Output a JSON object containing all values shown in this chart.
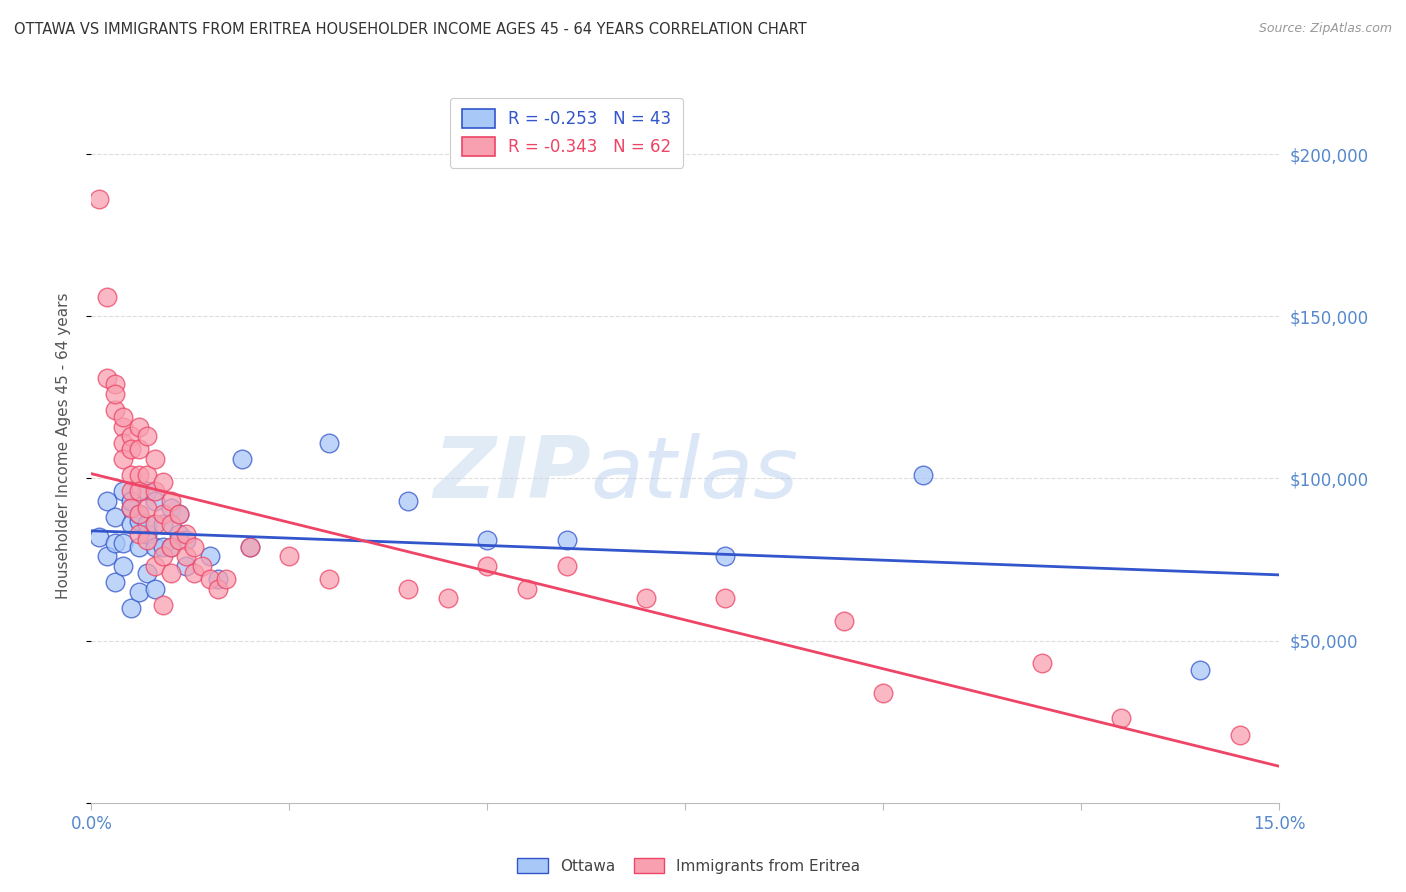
{
  "title": "OTTAWA VS IMMIGRANTS FROM ERITREA HOUSEHOLDER INCOME AGES 45 - 64 YEARS CORRELATION CHART",
  "source": "Source: ZipAtlas.com",
  "ylabel": "Householder Income Ages 45 - 64 years",
  "xmin": 0.0,
  "xmax": 0.15,
  "ymin": 0,
  "ymax": 220000,
  "yticks": [
    0,
    50000,
    100000,
    150000,
    200000
  ],
  "ytick_labels": [
    "",
    "$50,000",
    "$100,000",
    "$150,000",
    "$200,000"
  ],
  "ottawa_color": "#A8C8F8",
  "eritrea_color": "#F8A0B0",
  "ottawa_line_color": "#3355CC",
  "eritrea_line_color": "#EE4466",
  "R_ottawa": -0.253,
  "N_ottawa": 43,
  "R_eritrea": -0.343,
  "N_eritrea": 62,
  "watermark_zip": "ZIP",
  "watermark_atlas": "atlas",
  "background_color": "#FFFFFF",
  "grid_color": "#DDDDDD",
  "axis_label_color": "#5588CC",
  "title_color": "#333333",
  "xtick_positions": [
    0.0,
    0.025,
    0.05,
    0.075,
    0.1,
    0.125,
    0.15
  ],
  "ottawa_scatter": [
    [
      0.001,
      82000
    ],
    [
      0.002,
      76000
    ],
    [
      0.002,
      93000
    ],
    [
      0.003,
      68000
    ],
    [
      0.003,
      88000
    ],
    [
      0.003,
      80000
    ],
    [
      0.004,
      96000
    ],
    [
      0.004,
      80000
    ],
    [
      0.004,
      73000
    ],
    [
      0.005,
      91000
    ],
    [
      0.005,
      86000
    ],
    [
      0.005,
      60000
    ],
    [
      0.005,
      93000
    ],
    [
      0.006,
      87000
    ],
    [
      0.006,
      79000
    ],
    [
      0.006,
      65000
    ],
    [
      0.006,
      89000
    ],
    [
      0.007,
      83000
    ],
    [
      0.007,
      71000
    ],
    [
      0.007,
      96000
    ],
    [
      0.007,
      86000
    ],
    [
      0.008,
      79000
    ],
    [
      0.008,
      66000
    ],
    [
      0.008,
      93000
    ],
    [
      0.009,
      86000
    ],
    [
      0.009,
      79000
    ],
    [
      0.01,
      91000
    ],
    [
      0.01,
      79000
    ],
    [
      0.011,
      89000
    ],
    [
      0.011,
      83000
    ],
    [
      0.012,
      81000
    ],
    [
      0.012,
      73000
    ],
    [
      0.015,
      76000
    ],
    [
      0.016,
      69000
    ],
    [
      0.019,
      106000
    ],
    [
      0.02,
      79000
    ],
    [
      0.03,
      111000
    ],
    [
      0.04,
      93000
    ],
    [
      0.05,
      81000
    ],
    [
      0.06,
      81000
    ],
    [
      0.08,
      76000
    ],
    [
      0.105,
      101000
    ],
    [
      0.14,
      41000
    ]
  ],
  "eritrea_scatter": [
    [
      0.001,
      186000
    ],
    [
      0.002,
      156000
    ],
    [
      0.002,
      131000
    ],
    [
      0.003,
      129000
    ],
    [
      0.003,
      121000
    ],
    [
      0.003,
      126000
    ],
    [
      0.004,
      116000
    ],
    [
      0.004,
      111000
    ],
    [
      0.004,
      106000
    ],
    [
      0.004,
      119000
    ],
    [
      0.005,
      113000
    ],
    [
      0.005,
      109000
    ],
    [
      0.005,
      101000
    ],
    [
      0.005,
      96000
    ],
    [
      0.005,
      91000
    ],
    [
      0.006,
      116000
    ],
    [
      0.006,
      109000
    ],
    [
      0.006,
      101000
    ],
    [
      0.006,
      96000
    ],
    [
      0.006,
      89000
    ],
    [
      0.006,
      83000
    ],
    [
      0.007,
      113000
    ],
    [
      0.007,
      101000
    ],
    [
      0.007,
      91000
    ],
    [
      0.007,
      81000
    ],
    [
      0.008,
      106000
    ],
    [
      0.008,
      96000
    ],
    [
      0.008,
      86000
    ],
    [
      0.008,
      73000
    ],
    [
      0.009,
      99000
    ],
    [
      0.009,
      89000
    ],
    [
      0.009,
      76000
    ],
    [
      0.009,
      61000
    ],
    [
      0.01,
      93000
    ],
    [
      0.01,
      86000
    ],
    [
      0.01,
      79000
    ],
    [
      0.01,
      71000
    ],
    [
      0.011,
      89000
    ],
    [
      0.011,
      81000
    ],
    [
      0.012,
      83000
    ],
    [
      0.012,
      76000
    ],
    [
      0.013,
      79000
    ],
    [
      0.013,
      71000
    ],
    [
      0.014,
      73000
    ],
    [
      0.015,
      69000
    ],
    [
      0.016,
      66000
    ],
    [
      0.017,
      69000
    ],
    [
      0.02,
      79000
    ],
    [
      0.025,
      76000
    ],
    [
      0.03,
      69000
    ],
    [
      0.04,
      66000
    ],
    [
      0.045,
      63000
    ],
    [
      0.05,
      73000
    ],
    [
      0.055,
      66000
    ],
    [
      0.06,
      73000
    ],
    [
      0.07,
      63000
    ],
    [
      0.08,
      63000
    ],
    [
      0.095,
      56000
    ],
    [
      0.1,
      34000
    ],
    [
      0.12,
      43000
    ],
    [
      0.13,
      26000
    ],
    [
      0.145,
      21000
    ]
  ]
}
